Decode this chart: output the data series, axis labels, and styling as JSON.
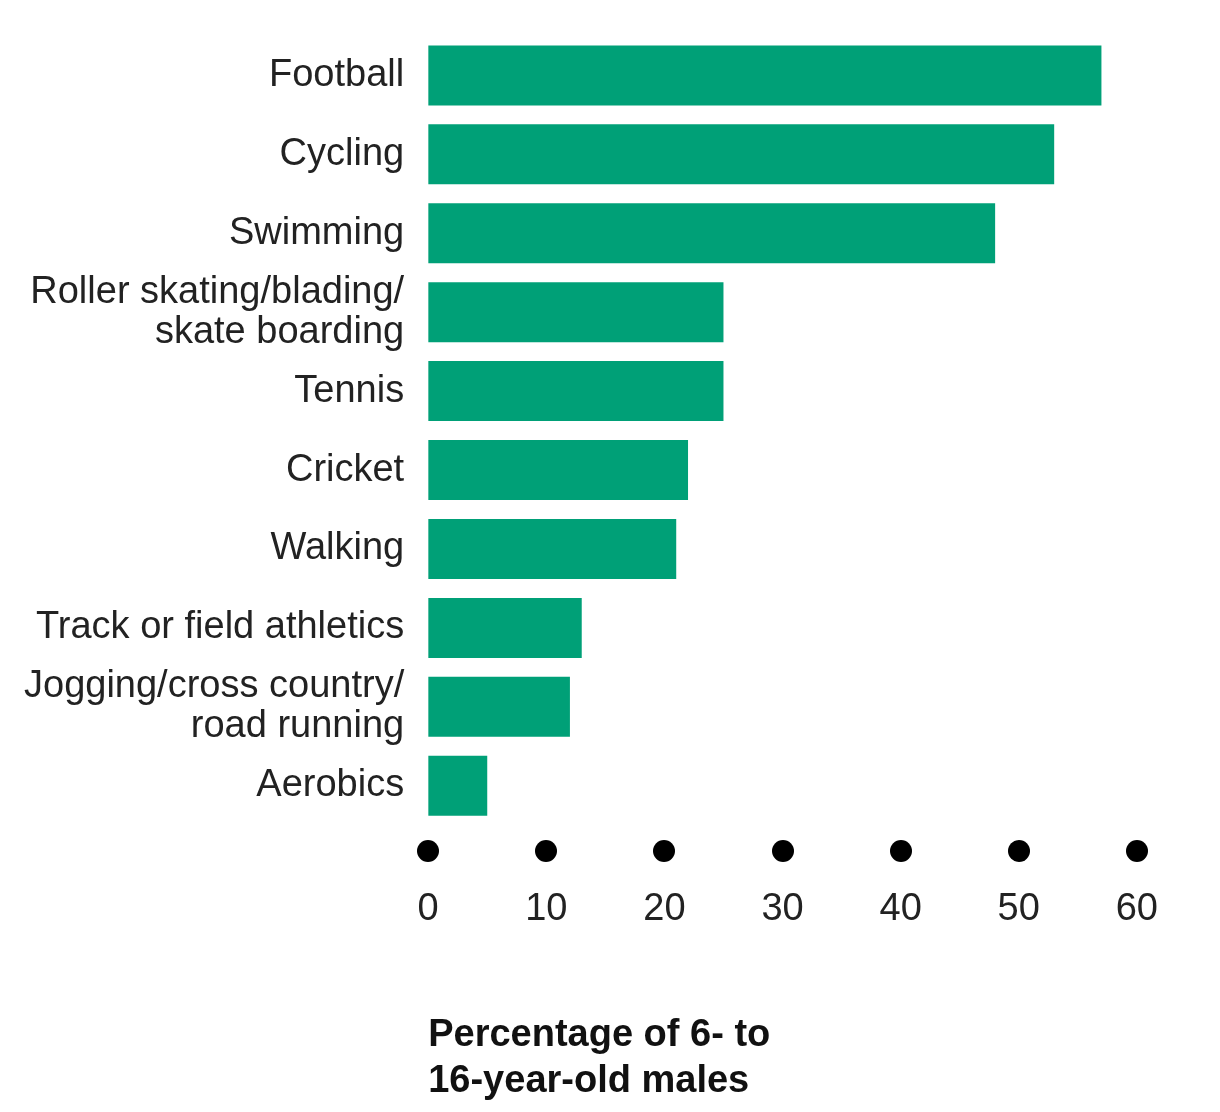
{
  "chart_data": {
    "type": "bar",
    "orientation": "horizontal",
    "xlabel": "Percentage of 6- to 16-year-old males",
    "categories": [
      "Football",
      "Cycling",
      "Swimming",
      "Roller skating/blading/skate boarding",
      "Tennis",
      "Cricket",
      "Walking",
      "Track or field athletics",
      "Jogging/cross country/road running",
      "Aerobics"
    ],
    "values": [
      57,
      53,
      48,
      25,
      25,
      22,
      21,
      13,
      12,
      5
    ],
    "color": "#00a077",
    "xlim": [
      0,
      60
    ],
    "xticks": [
      0,
      10,
      20,
      30,
      40,
      50,
      60
    ],
    "grid": false,
    "legend": false
  }
}
